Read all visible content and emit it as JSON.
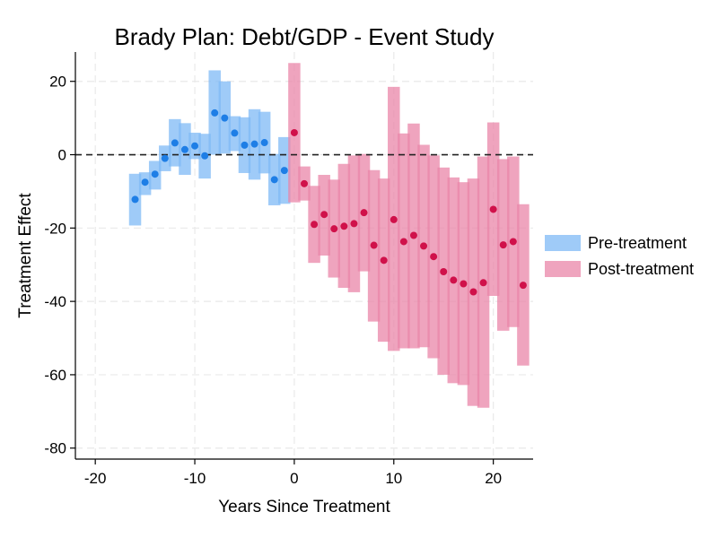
{
  "chart_data": {
    "type": "error_bar",
    "title": "Brady Plan: Debt/GDP - Event Study",
    "xlabel": "Years Since Treatment",
    "ylabel": "Treatment Effect",
    "xlim": [
      -22,
      24
    ],
    "ylim": [
      -83,
      28
    ],
    "xticks": [
      -20,
      -10,
      0,
      10,
      20
    ],
    "xtick_labels": [
      "-20",
      "-10",
      "0",
      "10",
      "20"
    ],
    "yticks": [
      20,
      0,
      -20,
      -40,
      -60,
      -80
    ],
    "ytick_labels": [
      "20",
      "0",
      "-20",
      "-40",
      "-60",
      "-80"
    ],
    "reference_line": {
      "y": 0,
      "style": "dashed",
      "color": "#222222"
    },
    "grid": true,
    "legend": {
      "position": "right"
    },
    "series": [
      {
        "name": "Pre-treatment",
        "color": "#7fb9f5",
        "point_color": "#1e7ee6",
        "points": [
          {
            "x": -16,
            "y": -12.2,
            "lo": -19.3,
            "hi": -5.2
          },
          {
            "x": -15,
            "y": -7.5,
            "lo": -11.0,
            "hi": -4.8
          },
          {
            "x": -14,
            "y": -5.3,
            "lo": -9.5,
            "hi": -1.7
          },
          {
            "x": -13,
            "y": -1.0,
            "lo": -4.5,
            "hi": 2.5
          },
          {
            "x": -12,
            "y": 3.2,
            "lo": -3.2,
            "hi": 9.7
          },
          {
            "x": -11,
            "y": 1.4,
            "lo": -5.5,
            "hi": 8.6
          },
          {
            "x": -10,
            "y": 2.4,
            "lo": -1.2,
            "hi": 6.0
          },
          {
            "x": -9,
            "y": -0.3,
            "lo": -6.5,
            "hi": 5.7
          },
          {
            "x": -8,
            "y": 11.4,
            "lo": 0.0,
            "hi": 23.0
          },
          {
            "x": -7,
            "y": 10.0,
            "lo": 0.3,
            "hi": 20.0
          },
          {
            "x": -6,
            "y": 5.9,
            "lo": 1.0,
            "hi": 10.5
          },
          {
            "x": -5,
            "y": 2.6,
            "lo": -5.0,
            "hi": 10.2
          },
          {
            "x": -4,
            "y": 2.9,
            "lo": -6.8,
            "hi": 12.4
          },
          {
            "x": -3,
            "y": 3.3,
            "lo": -5.1,
            "hi": 11.7
          },
          {
            "x": -2,
            "y": -6.8,
            "lo": -13.8,
            "hi": 0.2
          },
          {
            "x": -1,
            "y": -4.3,
            "lo": -13.4,
            "hi": 4.8
          }
        ]
      },
      {
        "name": "Post-treatment",
        "color": "#e986a8",
        "point_color": "#d0114a",
        "points": [
          {
            "x": 0,
            "y": 6.0,
            "lo": -13.0,
            "hi": 25.0
          },
          {
            "x": 1,
            "y": -7.9,
            "lo": -12.5,
            "hi": -3.2
          },
          {
            "x": 2,
            "y": -19.0,
            "lo": -29.5,
            "hi": -8.5
          },
          {
            "x": 3,
            "y": -16.3,
            "lo": -27.5,
            "hi": -5.5
          },
          {
            "x": 4,
            "y": -20.2,
            "lo": -33.5,
            "hi": -6.8
          },
          {
            "x": 5,
            "y": -19.5,
            "lo": -36.3,
            "hi": -2.5
          },
          {
            "x": 6,
            "y": -18.8,
            "lo": -37.5,
            "hi": -0.2
          },
          {
            "x": 7,
            "y": -15.8,
            "lo": -31.8,
            "hi": 0.2
          },
          {
            "x": 8,
            "y": -24.7,
            "lo": -45.5,
            "hi": -4.2
          },
          {
            "x": 9,
            "y": -28.8,
            "lo": -51.0,
            "hi": -6.5
          },
          {
            "x": 10,
            "y": -17.7,
            "lo": -53.5,
            "hi": 18.5
          },
          {
            "x": 11,
            "y": -23.7,
            "lo": -52.8,
            "hi": 5.8
          },
          {
            "x": 12,
            "y": -22.0,
            "lo": -52.8,
            "hi": 8.5
          },
          {
            "x": 13,
            "y": -24.9,
            "lo": -52.5,
            "hi": 2.7
          },
          {
            "x": 14,
            "y": -27.8,
            "lo": -55.5,
            "hi": -0.2
          },
          {
            "x": 15,
            "y": -31.9,
            "lo": -60.0,
            "hi": -3.5
          },
          {
            "x": 16,
            "y": -34.2,
            "lo": -62.3,
            "hi": -6.2
          },
          {
            "x": 17,
            "y": -35.2,
            "lo": -62.8,
            "hi": -7.5
          },
          {
            "x": 18,
            "y": -37.4,
            "lo": -68.5,
            "hi": -6.5
          },
          {
            "x": 19,
            "y": -34.9,
            "lo": -69.0,
            "hi": -0.5
          },
          {
            "x": 20,
            "y": -14.9,
            "lo": -38.5,
            "hi": 8.8
          },
          {
            "x": 21,
            "y": -24.6,
            "lo": -48.0,
            "hi": -1.2
          },
          {
            "x": 22,
            "y": -23.7,
            "lo": -47.0,
            "hi": -0.5
          },
          {
            "x": 23,
            "y": -35.6,
            "lo": -57.5,
            "hi": -13.5
          }
        ]
      }
    ]
  }
}
